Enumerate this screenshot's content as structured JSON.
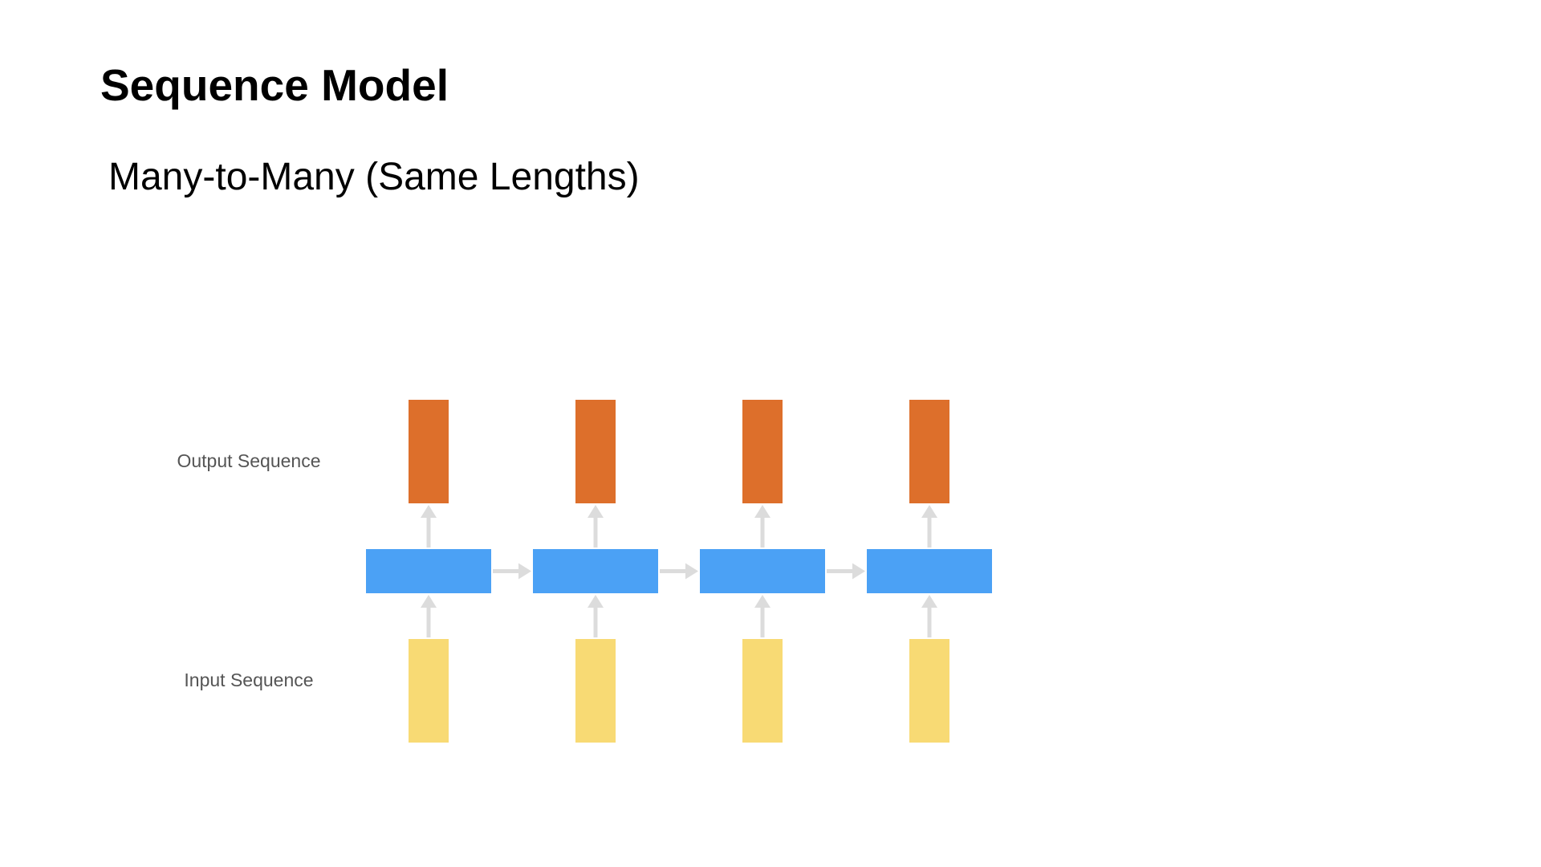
{
  "slide": {
    "title": "Sequence Model",
    "subtitle": "Many-to-Many (Same Lengths)"
  },
  "diagram": {
    "labels": {
      "output": "Output Sequence",
      "input": "Input Sequence"
    },
    "steps": 4,
    "colors": {
      "output": "#DD6F2B",
      "hidden": "#4BA1F5",
      "input": "#F8DA74",
      "arrow": "#DCDCDC"
    }
  }
}
